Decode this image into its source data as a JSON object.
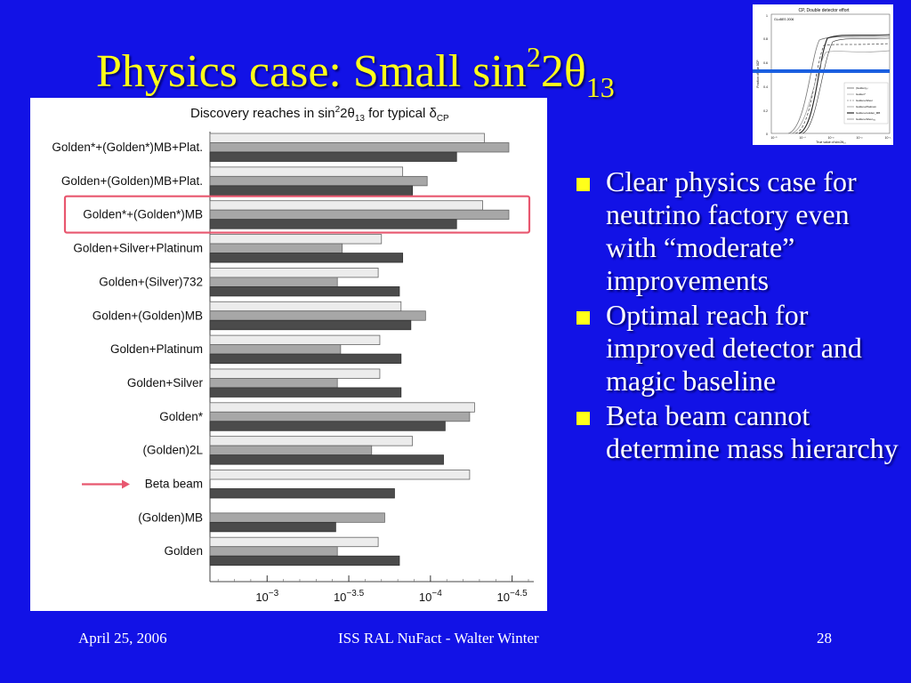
{
  "slide": {
    "title_main": "Physics case: Small sin",
    "title_sup": "2",
    "title_mid": "2θ",
    "title_sub": "13",
    "bullets": [
      "Clear physics case for neutrino factory even with “moderate” improvements",
      "Optimal reach for improved detector and magic baseline",
      "Beta beam cannot determine mass hierarchy"
    ],
    "footer_date": "April 25, 2006",
    "footer_center": "ISS RAL NuFact - Walter Winter",
    "page_number": "28",
    "colors": {
      "background": "#1212e6",
      "title": "#ffff1a",
      "text": "#ffffff",
      "bullet": "#ffff1a",
      "highlight_box": "#e8576f",
      "arrow": "#e8576f"
    }
  },
  "thumbnail": {
    "title": "CP, Double detector effort",
    "inset_label": "GLoBES 2006",
    "ylabel": "Fraction of true δCP",
    "xlabel": "True value of sin²2θ₁₃",
    "yticks": [
      "1",
      "0.8",
      "0.6",
      "0.4",
      "0.2",
      "0"
    ],
    "xticks": [
      "10⁻⁵",
      "10⁻⁴",
      "10⁻³",
      "10⁻²",
      "10⁻¹"
    ],
    "legend": [
      "(Golden)₂ₗ",
      "Golden*",
      "Golden+Silver",
      "Golden+Platinum",
      "Golden+Golden_MB",
      "Golden+Silver₇₃₂"
    ]
  },
  "chart_data": {
    "type": "bar",
    "title_prefix": "Discovery reaches in sin",
    "title_sup": "2",
    "title_theta": "2θ",
    "title_sub": "13",
    "title_suffix": " for typical δ",
    "title_cp": "CP",
    "xscale": "log-reversed",
    "xlim_exp": [
      -2.65,
      -4.6
    ],
    "xticks": [
      {
        "exp": -3,
        "base": "10",
        "sup": "−3"
      },
      {
        "exp": -3.5,
        "base": "10",
        "sup": "−3.5"
      },
      {
        "exp": -4,
        "base": "10",
        "sup": "−4"
      },
      {
        "exp": -4.5,
        "base": "10",
        "sup": "−4.5"
      }
    ],
    "highlight_row": 2,
    "arrow_row": 10,
    "series_style": [
      {
        "fill": "#ececec",
        "stroke": "#666666"
      },
      {
        "fill": "#a7a7a7",
        "stroke": "#666666"
      },
      {
        "fill": "#4b4b4b",
        "stroke": "#333333"
      }
    ],
    "rows": [
      {
        "label": "Golden*+(Golden*)MB+Plat.",
        "exps": [
          -4.33,
          -4.48,
          -4.16
        ]
      },
      {
        "label": "Golden+(Golden)MB+Plat.",
        "exps": [
          -3.83,
          -3.98,
          -3.89
        ]
      },
      {
        "label": "Golden*+(Golden*)MB",
        "exps": [
          -4.32,
          -4.48,
          -4.16
        ]
      },
      {
        "label": "Golden+Silver+Platinum",
        "exps": [
          -3.7,
          -3.46,
          -3.83
        ]
      },
      {
        "label": "Golden+(Silver)732",
        "exps": [
          -3.68,
          -3.43,
          -3.81
        ]
      },
      {
        "label": "Golden+(Golden)MB",
        "exps": [
          -3.82,
          -3.97,
          -3.88
        ]
      },
      {
        "label": "Golden+Platinum",
        "exps": [
          -3.69,
          -3.45,
          -3.82
        ]
      },
      {
        "label": "Golden+Silver",
        "exps": [
          -3.69,
          -3.43,
          -3.82
        ]
      },
      {
        "label": "Golden*",
        "exps": [
          -4.27,
          -4.24,
          -4.09
        ]
      },
      {
        "label": "(Golden)2L",
        "exps": [
          -3.89,
          -3.64,
          -4.08
        ]
      },
      {
        "label": "Beta beam",
        "exps": [
          -4.24,
          null,
          -3.78
        ]
      },
      {
        "label": "(Golden)MB",
        "exps": [
          null,
          -3.72,
          -3.42
        ]
      },
      {
        "label": "Golden",
        "exps": [
          -3.68,
          -3.43,
          -3.81
        ]
      }
    ]
  }
}
